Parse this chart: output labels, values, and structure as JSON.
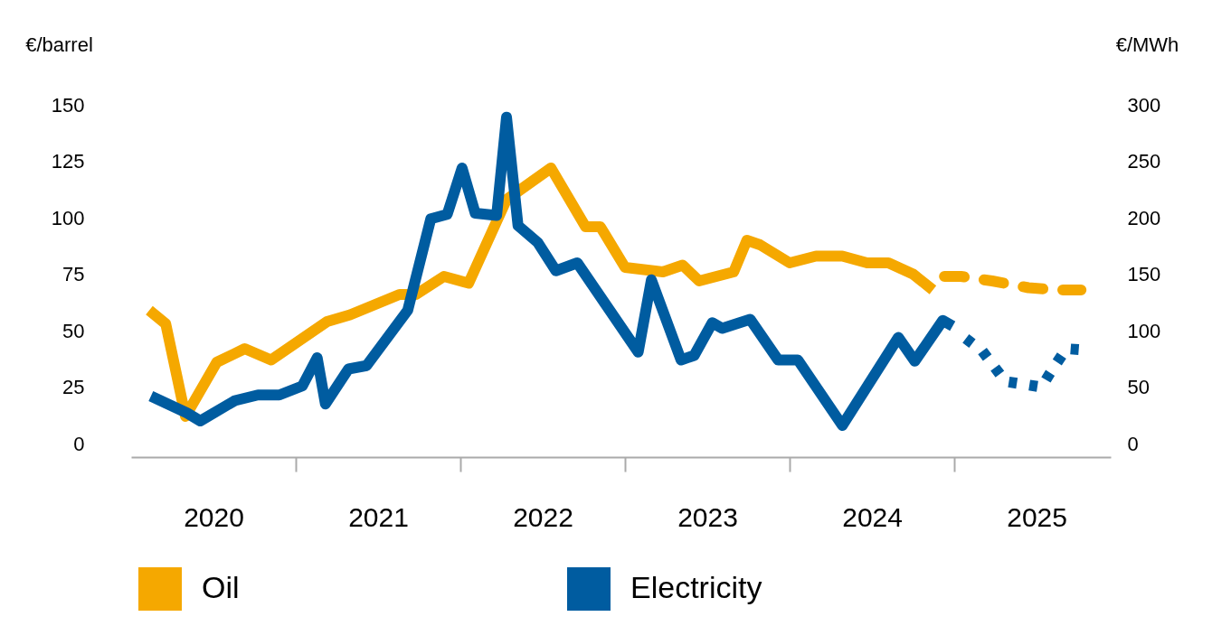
{
  "chart_data": {
    "type": "line",
    "ylabel": "€/barrel",
    "y2label": "€/MWh",
    "xlim": [
      2020,
      2025.95
    ],
    "xticks": [
      {
        "value": 2020.5,
        "label": "2020"
      },
      {
        "value": 2021,
        "label": null
      },
      {
        "value": 2021.5,
        "label": "2021"
      },
      {
        "value": 2022,
        "label": null
      },
      {
        "value": 2022.5,
        "label": "2022"
      },
      {
        "value": 2023,
        "label": null
      },
      {
        "value": 2023.5,
        "label": "2023"
      },
      {
        "value": 2024,
        "label": null
      },
      {
        "value": 2024.5,
        "label": "2024"
      },
      {
        "value": 2025,
        "label": null
      },
      {
        "value": 2025.5,
        "label": "2025"
      }
    ],
    "ylim": [
      -6,
      150
    ],
    "yticks": [
      0,
      25,
      50,
      75,
      100,
      125,
      150
    ],
    "y2lim": [
      -12,
      300
    ],
    "y2ticks": [
      0,
      50,
      100,
      150,
      200,
      250,
      300
    ],
    "grid": false,
    "legend": "bottom",
    "marker": "none",
    "series": [
      {
        "name": "Oil",
        "color": "#f5a800",
        "line_style": "solid",
        "x": [
          2020.11,
          2020.21,
          2020.33,
          2020.52,
          2020.69,
          2020.85,
          2021.03,
          2021.19,
          2021.33,
          2021.63,
          2021.73,
          2021.9,
          2022.05,
          2022.28,
          2022.55,
          2022.76,
          2022.85,
          2023.0,
          2023.23,
          2023.35,
          2023.45,
          2023.66,
          2023.74,
          2023.82,
          2024.0,
          2024.16,
          2024.32,
          2024.47,
          2024.6,
          2024.75,
          2024.87
        ],
        "values": [
          59,
          53,
          12,
          36,
          42,
          37,
          46,
          54,
          57,
          66,
          66,
          74,
          71,
          108,
          122,
          96,
          96,
          78,
          76,
          79,
          72,
          76,
          90,
          88,
          80,
          83,
          83,
          80,
          80,
          75,
          68
        ]
      },
      {
        "color": "#f5a800",
        "line_style": "dashed",
        "x": [
          2024.94,
          2025.04,
          2025.23,
          2025.45,
          2025.63,
          2025.77
        ],
        "values": [
          74,
          74,
          72,
          69,
          68,
          68
        ]
      },
      {
        "name": "Electricity",
        "color": "#005ca0",
        "line_style": "solid",
        "axis": "y2",
        "x": [
          2020.12,
          2020.34,
          2020.42,
          2020.63,
          2020.77,
          2020.9,
          2021.04,
          2021.13,
          2021.18,
          2021.32,
          2021.43,
          2021.68,
          2021.82,
          2021.92,
          2022.01,
          2022.09,
          2022.22,
          2022.28,
          2022.35,
          2022.47,
          2022.58,
          2022.71,
          2023.08,
          2023.16,
          2023.34,
          2023.42,
          2023.53,
          2023.59,
          2023.76,
          2023.93,
          2024.05,
          2024.32,
          2024.66,
          2024.76,
          2024.93,
          2024.99
        ],
        "values": [
          42,
          27,
          20,
          38,
          43,
          43,
          51,
          76,
          35,
          66,
          69,
          118,
          199,
          203,
          244,
          204,
          202,
          289,
          193,
          178,
          153,
          160,
          81,
          145,
          74,
          78,
          107,
          102,
          110,
          74,
          74,
          16,
          94,
          73,
          109,
          104
        ]
      },
      {
        "color": "#005ca0",
        "line_style": "dotted",
        "axis": "y2",
        "x": [
          2025.07,
          2025.17,
          2025.31,
          2025.53,
          2025.58,
          2025.68,
          2025.77
        ],
        "values": [
          93,
          82,
          55,
          50,
          62,
          84,
          83
        ]
      }
    ]
  }
}
